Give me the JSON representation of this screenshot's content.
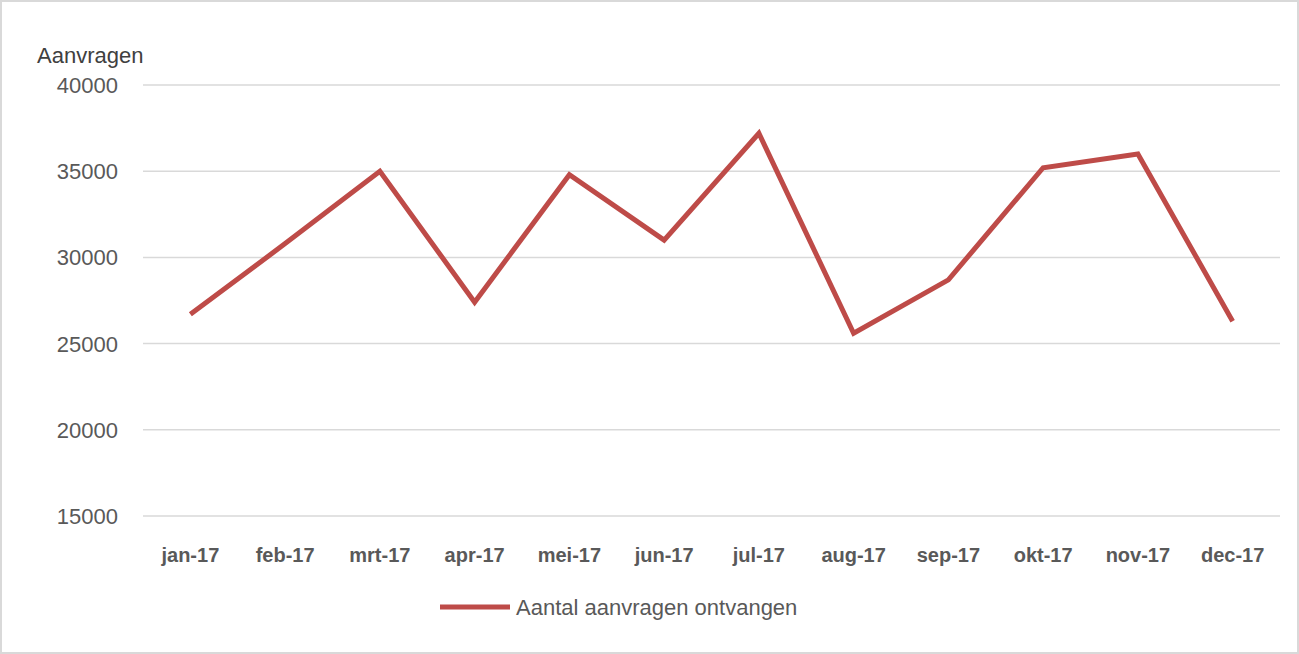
{
  "chart_data": {
    "type": "line",
    "y_label": "Aanvragen",
    "categories": [
      "jan-17",
      "feb-17",
      "mrt-17",
      "apr-17",
      "mei-17",
      "jun-17",
      "jul-17",
      "aug-17",
      "sep-17",
      "okt-17",
      "nov-17",
      "dec-17"
    ],
    "series": [
      {
        "name": "Aantal aanvragen ontvangen",
        "color": "#be4b48",
        "values": [
          26700,
          30800,
          35000,
          27400,
          34800,
          31000,
          37200,
          25600,
          28700,
          35200,
          36000,
          26300
        ]
      }
    ],
    "ylim": [
      15000,
      40000
    ],
    "yticks": [
      15000,
      20000,
      25000,
      30000,
      35000,
      40000
    ],
    "grid": true,
    "legend": "bottom"
  }
}
